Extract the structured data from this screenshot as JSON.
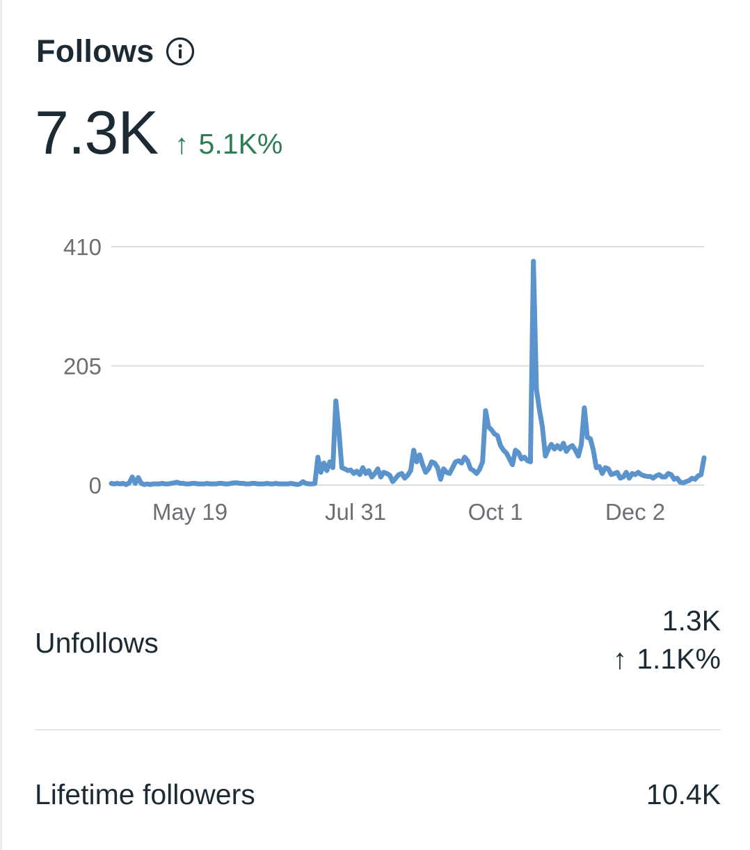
{
  "header": {
    "title": "Follows",
    "info_icon": "info-circle-icon"
  },
  "metric": {
    "value": "7.3K",
    "change_arrow": "↑",
    "change": "5.1K%",
    "change_color": "#2e7d55"
  },
  "chart_data": {
    "type": "line",
    "title": "",
    "xlabel": "",
    "ylabel": "",
    "ylim": [
      0,
      410
    ],
    "y_ticks": [
      "0",
      "205",
      "410"
    ],
    "x_ticks": [
      "May 19",
      "Jul 31",
      "Oct 1",
      "Dec 2"
    ],
    "grid": true,
    "line_color": "#5b93cc",
    "series": [
      {
        "values": [
          3,
          2,
          3,
          2,
          3,
          1,
          4,
          14,
          3,
          13,
          3,
          1,
          2,
          1,
          2,
          2,
          2,
          3,
          2,
          2,
          3,
          4,
          5,
          3,
          3,
          2,
          2,
          3,
          3,
          2,
          2,
          2,
          3,
          2,
          2,
          2,
          3,
          3,
          2,
          2,
          3,
          4,
          4,
          3,
          3,
          2,
          2,
          3,
          3,
          2,
          2,
          2,
          3,
          2,
          2,
          3,
          2,
          2,
          2,
          2,
          3,
          2,
          1,
          2,
          6,
          3,
          2,
          2,
          3,
          48,
          22,
          38,
          25,
          40,
          30,
          145,
          95,
          30,
          28,
          25,
          26,
          20,
          24,
          18,
          30,
          20,
          25,
          14,
          20,
          28,
          14,
          22,
          20,
          17,
          6,
          12,
          18,
          20,
          12,
          17,
          25,
          60,
          40,
          52,
          35,
          22,
          28,
          40,
          38,
          30,
          10,
          28,
          22,
          20,
          30,
          40,
          42,
          38,
          48,
          42,
          28,
          25,
          20,
          27,
          40,
          128,
          100,
          95,
          88,
          85,
          68,
          60,
          55,
          45,
          35,
          60,
          56,
          45,
          48,
          42,
          40,
          385,
          165,
          130,
          100,
          50,
          62,
          70,
          62,
          68,
          62,
          72,
          58,
          65,
          68,
          60,
          50,
          70,
          133,
          82,
          80,
          60,
          30,
          32,
          20,
          30,
          28,
          18,
          20,
          22,
          12,
          14,
          22,
          12,
          20,
          18,
          22,
          18,
          16,
          15,
          15,
          12,
          16,
          18,
          14,
          14,
          20,
          18,
          10,
          12,
          5,
          4,
          6,
          8,
          12,
          10,
          16,
          18,
          47
        ]
      }
    ]
  },
  "rows": {
    "unfollows": {
      "label": "Unfollows",
      "value": "1.3K",
      "change_arrow": "↑",
      "change": "1.1K%"
    },
    "lifetime": {
      "label": "Lifetime followers",
      "value": "10.4K"
    }
  }
}
